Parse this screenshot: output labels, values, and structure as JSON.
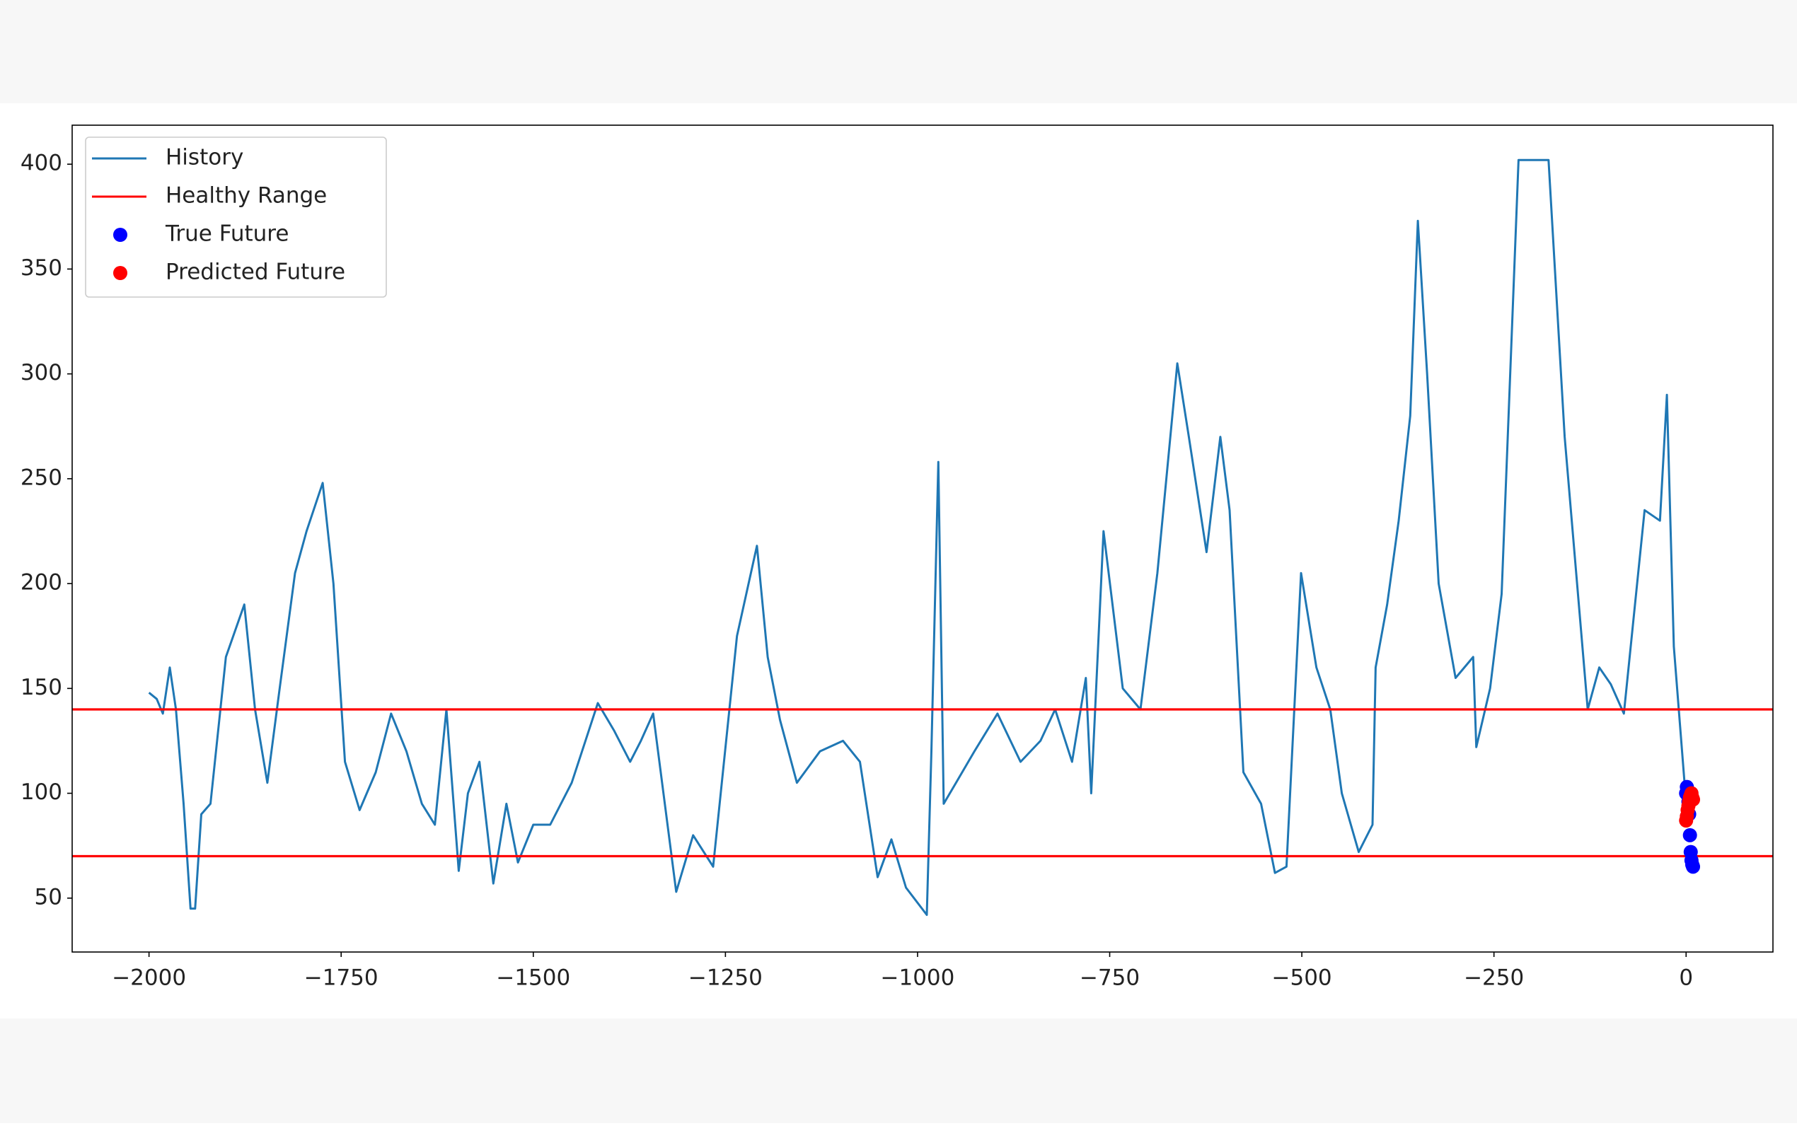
{
  "chart_data": {
    "type": "line",
    "xlim": [
      -2100,
      113
    ],
    "ylim": [
      24.3,
      418.6
    ],
    "xticks": [
      {
        "value": -2000,
        "label": "−2000"
      },
      {
        "value": -1750,
        "label": "−1750"
      },
      {
        "value": -1500,
        "label": "−1500"
      },
      {
        "value": -1250,
        "label": "−1250"
      },
      {
        "value": -1000,
        "label": "−1000"
      },
      {
        "value": -750,
        "label": "−750"
      },
      {
        "value": -500,
        "label": "−500"
      },
      {
        "value": -250,
        "label": "−250"
      },
      0
    ],
    "yticks": [
      50,
      100,
      150,
      200,
      250,
      300,
      350,
      400
    ],
    "legend": "upper left",
    "series": [
      {
        "name": "History",
        "color": "#1f77b4",
        "kind": "line",
        "x": [
          -2000,
          -1990,
          -1982,
          -1973,
          -1965,
          -1955,
          -1946,
          -1940,
          -1932,
          -1920,
          -1900,
          -1876,
          -1862,
          -1846,
          -1830,
          -1810,
          -1795,
          -1774,
          -1760,
          -1745,
          -1726,
          -1705,
          -1685,
          -1665,
          -1645,
          -1628,
          -1613,
          -1597,
          -1585,
          -1570,
          -1552,
          -1535,
          -1520,
          -1500,
          -1478,
          -1450,
          -1416,
          -1395,
          -1374,
          -1360,
          -1344,
          -1314,
          -1292,
          -1266,
          -1235,
          -1209,
          -1195,
          -1179,
          -1157,
          -1127,
          -1097,
          -1075,
          -1052,
          -1034,
          -1015,
          -988,
          -982,
          -973,
          -966,
          -950,
          -926,
          -896,
          -866,
          -840,
          -821,
          -799,
          -781,
          -774,
          -758,
          -733,
          -710,
          -688,
          -662,
          -647,
          -624,
          -606,
          -594,
          -576,
          -553,
          -535,
          -520,
          -501,
          -481,
          -463,
          -448,
          -426,
          -408,
          -404,
          -389,
          -374,
          -359,
          -349,
          -337,
          -322,
          -300,
          -277,
          -273,
          -255,
          -240,
          -218,
          -179,
          -158,
          -128,
          -113,
          -98,
          -81,
          -54,
          -34,
          -25,
          -16,
          -1
        ],
        "values": [
          148,
          145,
          138,
          160,
          140,
          95,
          45,
          45,
          90,
          95,
          165,
          190,
          140,
          105,
          150,
          205,
          225,
          248,
          200,
          115,
          92,
          110,
          138,
          120,
          95,
          85,
          140,
          63,
          100,
          115,
          57,
          95,
          67,
          85,
          85,
          105,
          143,
          130,
          115,
          125,
          138,
          53,
          80,
          65,
          175,
          218,
          165,
          135,
          105,
          120,
          125,
          115,
          60,
          78,
          55,
          42,
          120,
          258,
          95,
          105,
          120,
          138,
          115,
          125,
          140,
          115,
          155,
          100,
          225,
          150,
          140,
          205,
          305,
          270,
          215,
          270,
          235,
          110,
          95,
          62,
          65,
          205,
          160,
          140,
          100,
          72,
          85,
          160,
          190,
          230,
          280,
          373,
          300,
          200,
          155,
          165,
          122,
          150,
          195,
          402,
          402,
          270,
          140,
          160,
          152,
          138,
          235,
          230,
          290,
          170,
          100
        ]
      },
      {
        "name": "Healthy Range",
        "color": "#ff0000",
        "kind": "hline",
        "values": [
          140,
          70
        ]
      },
      {
        "name": "True Future",
        "color": "#0000ff",
        "kind": "points",
        "x": [
          0,
          1,
          2,
          3,
          4,
          5,
          6,
          7,
          8,
          9
        ],
        "values": [
          100,
          103,
          101,
          96,
          90,
          80,
          72,
          68,
          66,
          65
        ]
      },
      {
        "name": "Predicted Future",
        "color": "#ff0000",
        "kind": "points",
        "x": [
          0,
          1,
          2,
          3,
          4,
          5,
          6,
          7,
          8,
          9
        ],
        "values": [
          87,
          89,
          92,
          94,
          96,
          98,
          99,
          100,
          98,
          97
        ]
      }
    ]
  }
}
